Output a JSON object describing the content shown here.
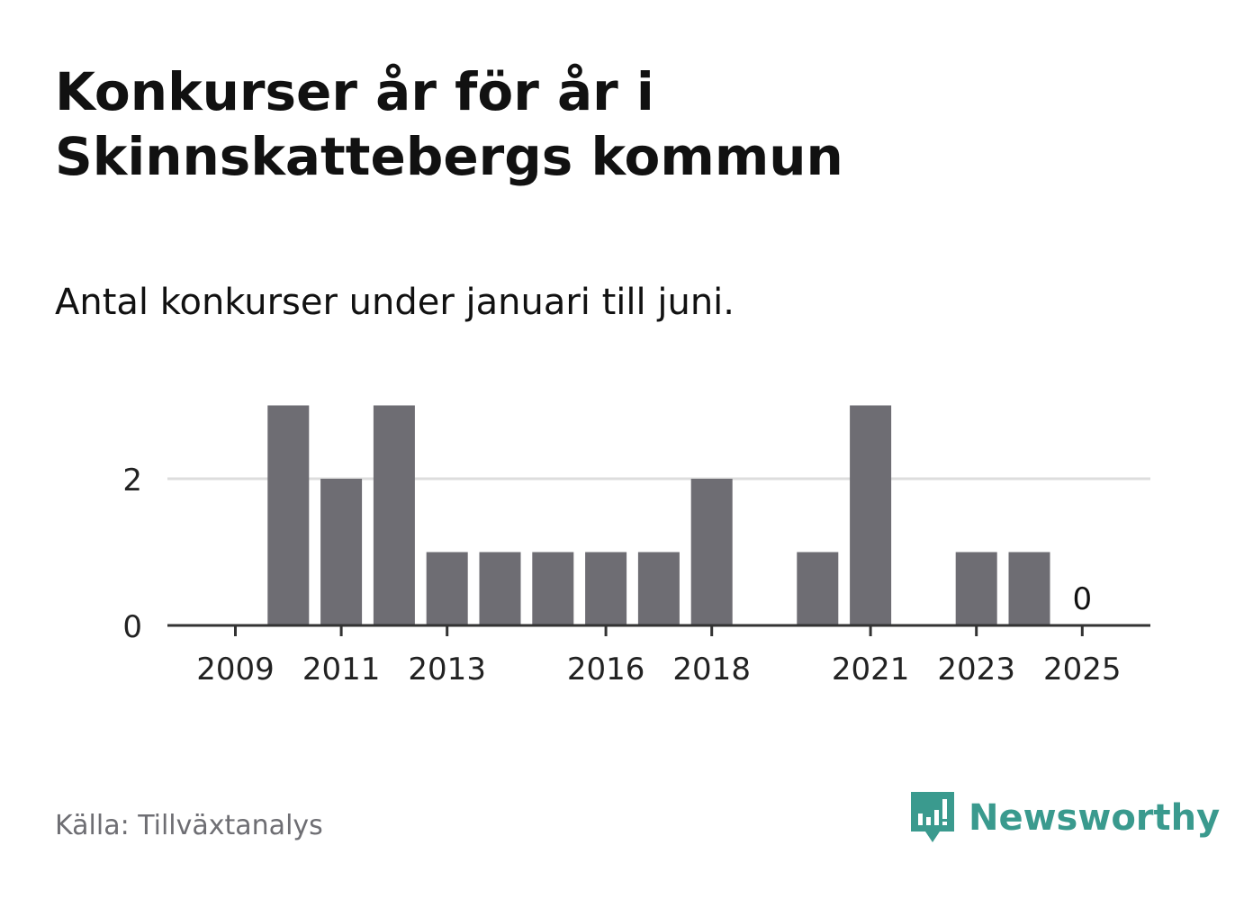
{
  "title": "Konkurser år för år i Skinnskattebergs kommun",
  "subtitle": "Antal konkurser under januari till juni.",
  "source": "Källa: Tillväxtanalys",
  "brand": {
    "name": "Newsworthy",
    "icon": "newsworthy-logo-icon",
    "color": "#3a9a8e"
  },
  "colors": {
    "bar": "#6e6d73",
    "axis": "#333333",
    "grid": "#dddddd",
    "tick_text": "#222222"
  },
  "chart_data": {
    "type": "bar",
    "categories": [
      "2009",
      "2010",
      "2011",
      "2012",
      "2013",
      "2014",
      "2015",
      "2016",
      "2017",
      "2018",
      "2019",
      "2020",
      "2021",
      "2022",
      "2023",
      "2024",
      "2025"
    ],
    "values": [
      0,
      3,
      2,
      3,
      1,
      1,
      1,
      1,
      1,
      2,
      0,
      1,
      3,
      0,
      1,
      1,
      0
    ],
    "x_tick_labels": [
      "2009",
      "2011",
      "2013",
      "2016",
      "2018",
      "2021",
      "2023",
      "2025"
    ],
    "y_ticks": [
      0,
      2
    ],
    "ylim": [
      0,
      3
    ],
    "grid": true,
    "annotations": [
      {
        "category": "2025",
        "text": "0"
      }
    ],
    "xlabel": "",
    "ylabel": ""
  }
}
